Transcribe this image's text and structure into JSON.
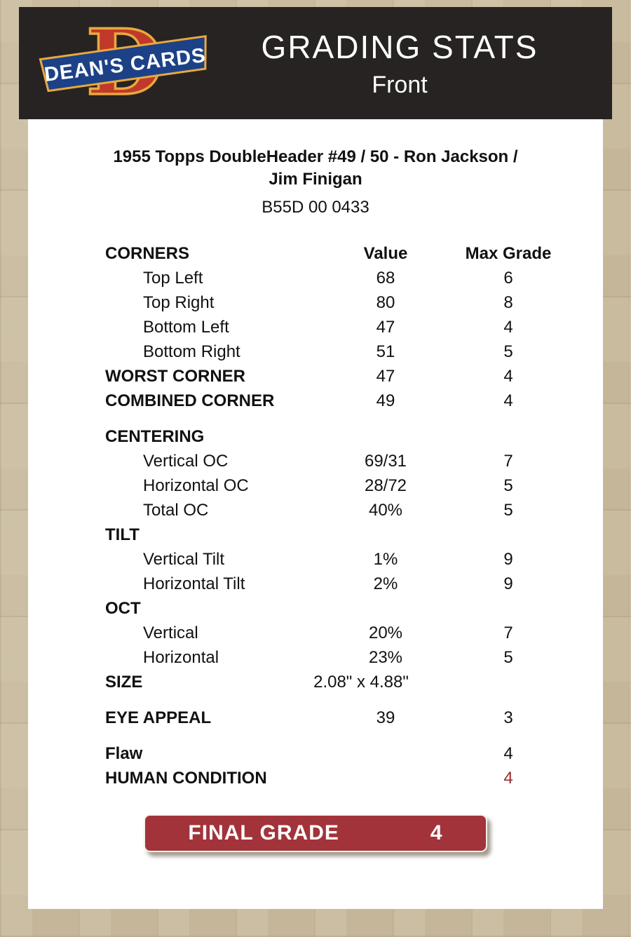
{
  "colors": {
    "page_bg": "#c8bb9e",
    "header_bg": "#272322",
    "accent_red": "#a2333a",
    "human_condition_red": "#9b2b2b",
    "logo_blue": "#1c4187",
    "logo_red": "#c0392b",
    "logo_gold": "#e8a93e"
  },
  "header": {
    "title": "GRADING STATS",
    "subtitle": "Front",
    "logo_letter": "D",
    "logo_text": "DEAN'S CARDS"
  },
  "card": {
    "title_lines": [
      "1955 Topps DoubleHeader #49 / 50 - Ron Jackson /",
      "Jim Finigan"
    ],
    "serial": "B55D 00 0433"
  },
  "table": {
    "rows": [
      {
        "label": "CORNERS",
        "value": "Value",
        "grade": "Max Grade",
        "type": "header"
      },
      {
        "label": "Top Left",
        "value": "68",
        "grade": "6",
        "type": "sub"
      },
      {
        "label": "Top Right",
        "value": "80",
        "grade": "8",
        "type": "sub"
      },
      {
        "label": "Bottom Left",
        "value": "47",
        "grade": "4",
        "type": "sub"
      },
      {
        "label": "Bottom Right",
        "value": "51",
        "grade": "5",
        "type": "sub"
      },
      {
        "label": "WORST CORNER",
        "value": "47",
        "grade": "4",
        "type": "section"
      },
      {
        "label": "COMBINED CORNER",
        "value": "49",
        "grade": "4",
        "type": "section"
      },
      {
        "label": "CENTERING",
        "value": "",
        "grade": "",
        "type": "section",
        "gap": true
      },
      {
        "label": "Vertical OC",
        "value": "69/31",
        "grade": "7",
        "type": "sub"
      },
      {
        "label": "Horizontal OC",
        "value": "28/72",
        "grade": "5",
        "type": "sub"
      },
      {
        "label": "Total OC",
        "value": "40%",
        "grade": "5",
        "type": "sub"
      },
      {
        "label": "TILT",
        "value": "",
        "grade": "",
        "type": "section"
      },
      {
        "label": "Vertical Tilt",
        "value": "1%",
        "grade": "9",
        "type": "sub"
      },
      {
        "label": "Horizontal Tilt",
        "value": "2%",
        "grade": "9",
        "type": "sub"
      },
      {
        "label": "OCT",
        "value": "",
        "grade": "",
        "type": "section"
      },
      {
        "label": "Vertical",
        "value": "20%",
        "grade": "7",
        "type": "sub"
      },
      {
        "label": "Horizontal",
        "value": "23%",
        "grade": "5",
        "type": "sub"
      },
      {
        "label": "SIZE",
        "value": "2.08\" x 4.88\"",
        "grade": "",
        "type": "section",
        "value_left": true
      },
      {
        "label": "EYE APPEAL",
        "value": "39",
        "grade": "3",
        "type": "section",
        "gap": true
      },
      {
        "label": "Flaw",
        "value": "",
        "grade": "4",
        "type": "section",
        "gap": true
      },
      {
        "label": "HUMAN CONDITION",
        "value": "",
        "grade": "4",
        "type": "section",
        "grade_red": true
      }
    ]
  },
  "final_grade": {
    "label": "FINAL GRADE",
    "value": "4"
  }
}
